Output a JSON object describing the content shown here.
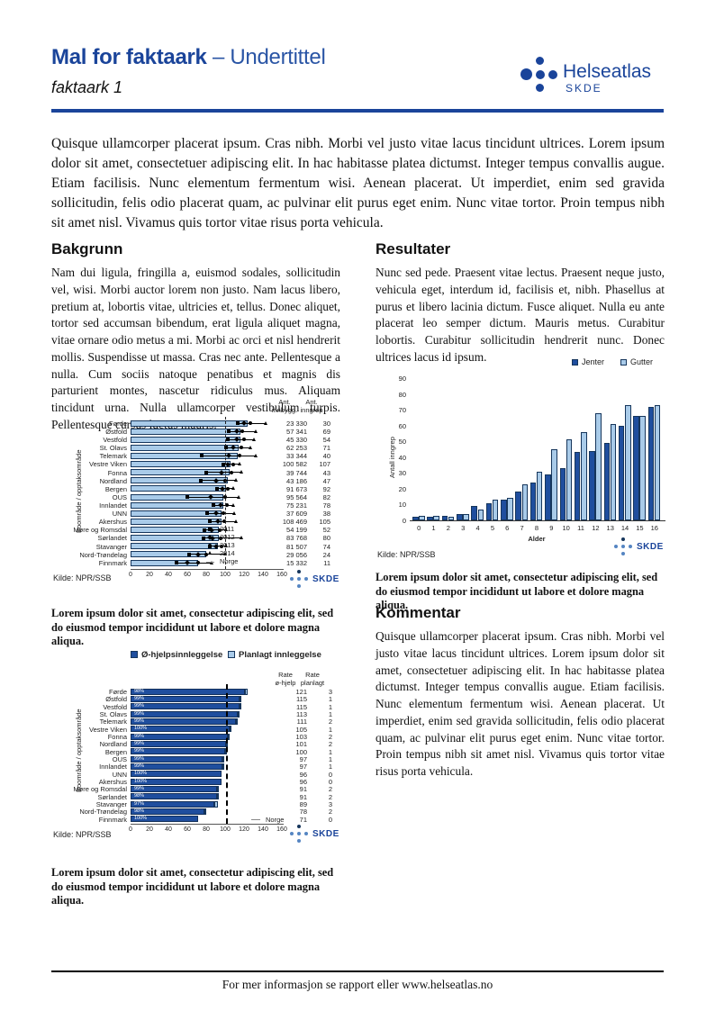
{
  "header": {
    "title": "Mal for faktaark",
    "title_suffix": " – Undertittel",
    "subtitle": "faktaark 1",
    "logo_name": "Helseatlas",
    "logo_org": "SKDE"
  },
  "intro": "Quisque ullamcorper placerat ipsum. Cras nibh. Morbi vel justo vitae lacus tincidunt ultrices. Lorem ipsum dolor sit amet, consectetuer adipiscing elit. In hac habitasse platea dictumst. Integer tempus convallis augue. Etiam facilisis. Nunc elementum fermentum wisi. Aenean placerat. Ut imperdiet, enim sed gravida sollicitudin, felis odio placerat quam, ac pulvinar elit purus eget enim. Nunc vitae tortor. Proin tempus nibh sit amet nisl. Vivamus quis tortor vitae risus porta vehicula.",
  "sections": {
    "bakgrunn": {
      "heading": "Bakgrunn",
      "body": "Nam dui ligula, fringilla a, euismod sodales, sollicitudin vel, wisi. Morbi auctor lorem non justo. Nam lacus libero, pretium at, lobortis vitae, ultricies et, tellus. Donec aliquet, tortor sed accumsan bibendum, erat ligula aliquet magna, vitae ornare odio metus a mi. Morbi ac orci et nisl hendrerit mollis. Suspendisse ut massa. Cras nec ante. Pellentesque a nulla. Cum sociis natoque penatibus et magnis dis parturient montes, nascetur ridiculus mus. Aliquam tincidunt urna. Nulla ullamcorper vestibulum turpis. Pellentesque cursus luctus mauris."
    },
    "resultater": {
      "heading": "Resultater",
      "body": "Nunc sed pede. Praesent vitae lectus. Praesent neque justo, vehicula eget, interdum id, facilisis et, nibh. Phasellus at purus et libero lacinia dictum. Fusce aliquet. Nulla eu ante placerat leo semper dictum. Mauris metus. Curabitur lobortis. Curabitur sollicitudin hendrerit nunc. Donec ultrices lacus id ipsum."
    },
    "kommentar": {
      "heading": "Kommentar",
      "body": "Quisque ullamcorper placerat ipsum. Cras nibh. Morbi vel justo vitae lacus tincidunt ultrices. Lorem ipsum dolor sit amet, consectetuer adipiscing elit. In hac habitasse platea dictumst. Integer tempus convallis augue. Etiam facilisis. Nunc elementum fermentum wisi. Aenean placerat. Ut imperdiet, enim sed gravida sollicitudin, felis odio placerat quam, ac pulvinar elit purus eget enim. Nunc vitae tortor. Proin tempus nibh sit amet nisl. Vivamus quis tortor vitae risus porta vehicula."
    }
  },
  "captions": {
    "chart1": "Lorem ipsum dolor sit amet, consectetur adipiscing elit, sed do eiusmod tempor incididunt ut labore et dolore magna aliqua.",
    "chart2": "Lorem ipsum dolor sit amet, consectetur adipiscing elit, sed do eiusmod tempor incididunt ut labore et dolore magna aliqua.",
    "chart3": "Lorem ipsum dolor sit amet, consectetur adipiscing elit, sed do eiusmod tempor incididunt ut labore et dolore magna aliqua."
  },
  "footer": "For mer informasjon se rapport eller www.helseatlas.no",
  "colors": {
    "brand": "#1a449a",
    "dark_bar": "#1f4e9e",
    "light_bar": "#a9cbe9",
    "bar_border": "#16365c"
  },
  "chart_data": [
    {
      "type": "bar",
      "orientation": "horizontal",
      "ylabel": "Boområde / opptaksområde",
      "col_headers": [
        "Ant.\ninnbygg.",
        "Ant.\ninngrep"
      ],
      "xticks": [
        0,
        20,
        40,
        60,
        80,
        100,
        120,
        140,
        160
      ],
      "xlim": [
        0,
        160
      ],
      "norge_line": 100,
      "legend": [
        {
          "label": "2011",
          "marker": "square"
        },
        {
          "label": "2012",
          "marker": "diamond"
        },
        {
          "label": "2013",
          "marker": "circle"
        },
        {
          "label": "2014",
          "marker": "triangle"
        },
        {
          "label": "Norge",
          "marker": "dash"
        }
      ],
      "kilde": "Kilde: NPR/SSB",
      "rows": [
        {
          "name": "Førde",
          "bar": 124,
          "points": [
            113,
            120,
            127,
            143
          ],
          "innbygg": "23 330",
          "inngrep": "30"
        },
        {
          "name": "Østfold",
          "bar": 116,
          "points": [
            104,
            112,
            118,
            133
          ],
          "innbygg": "57 341",
          "inngrep": "69"
        },
        {
          "name": "Vestfold",
          "bar": 116,
          "points": [
            103,
            112,
            120,
            131
          ],
          "innbygg": "45 330",
          "inngrep": "54"
        },
        {
          "name": "St. Olavs",
          "bar": 114,
          "points": [
            101,
            109,
            117,
            127
          ],
          "innbygg": "62 253",
          "inngrep": "71"
        },
        {
          "name": "Telemark",
          "bar": 113,
          "points": [
            75,
            104,
            115,
            133
          ],
          "innbygg": "33 344",
          "inngrep": "40"
        },
        {
          "name": "Vestre Viken",
          "bar": 106,
          "points": [
            98,
            103,
            109,
            116
          ],
          "innbygg": "100 582",
          "inngrep": "107"
        },
        {
          "name": "Fonna",
          "bar": 105,
          "points": [
            80,
            96,
            107,
            118
          ],
          "innbygg": "39 744",
          "inngrep": "43"
        },
        {
          "name": "Nordland",
          "bar": 103,
          "points": [
            74,
            90,
            100,
            112
          ],
          "innbygg": "43 186",
          "inngrep": "47"
        },
        {
          "name": "Bergen",
          "bar": 101,
          "points": [
            91,
            97,
            103,
            109
          ],
          "innbygg": "91 673",
          "inngrep": "92"
        },
        {
          "name": "OUS",
          "bar": 98,
          "points": [
            60,
            85,
            100,
            115
          ],
          "innbygg": "95 564",
          "inngrep": "82"
        },
        {
          "name": "Innlandet",
          "bar": 98,
          "points": [
            88,
            95,
            102,
            109
          ],
          "innbygg": "75 231",
          "inngrep": "78"
        },
        {
          "name": "UNN",
          "bar": 96,
          "points": [
            81,
            90,
            98,
            110
          ],
          "innbygg": "37 609",
          "inngrep": "38"
        },
        {
          "name": "Akershus",
          "bar": 96,
          "points": [
            84,
            92,
            99,
            112
          ],
          "innbygg": "108 469",
          "inngrep": "105"
        },
        {
          "name": "Møre og Romsdal",
          "bar": 93,
          "points": [
            78,
            86,
            94,
            101
          ],
          "innbygg": "54 199",
          "inngrep": "52"
        },
        {
          "name": "Sørlandet",
          "bar": 93,
          "points": [
            77,
            87,
            95,
            118
          ],
          "innbygg": "83 768",
          "inngrep": "80"
        },
        {
          "name": "Stavanger",
          "bar": 92,
          "points": [
            84,
            90,
            96,
            101
          ],
          "innbygg": "81 507",
          "inngrep": "74"
        },
        {
          "name": "Nord-Trøndelag",
          "bar": 80,
          "points": [
            62,
            71,
            80,
            100
          ],
          "innbygg": "29 056",
          "inngrep": "24"
        },
        {
          "name": "Finnmark",
          "bar": 71,
          "points": [
            49,
            60,
            71,
            86
          ],
          "innbygg": "15 332",
          "inngrep": "11"
        }
      ]
    },
    {
      "type": "bar",
      "orientation": "vertical-grouped",
      "title": "",
      "xlabel": "Alder",
      "ylabel": "Antall inngrep",
      "ylim": [
        0,
        90
      ],
      "yticks": [
        0,
        10,
        20,
        30,
        40,
        50,
        60,
        70,
        80,
        90
      ],
      "categories": [
        "0",
        "1",
        "2",
        "3",
        "4",
        "5",
        "6",
        "7",
        "8",
        "9",
        "10",
        "11",
        "12",
        "13",
        "14",
        "15",
        "16"
      ],
      "series": [
        {
          "name": "Jenter",
          "color": "#1f4e9e",
          "values": [
            2,
            2,
            3,
            4,
            9,
            11,
            13,
            18,
            24,
            29,
            33,
            43,
            44,
            49,
            60,
            66,
            72
          ]
        },
        {
          "name": "Gutter",
          "color": "#a9cbe9",
          "values": [
            3,
            3,
            2,
            4,
            7,
            13,
            14,
            23,
            31,
            45,
            51,
            56,
            68,
            61,
            73,
            66,
            73
          ]
        }
      ],
      "legend_position": "top-right",
      "kilde": "Kilde: NPR/SSB"
    },
    {
      "type": "bar",
      "orientation": "horizontal-stacked",
      "ylabel": "Boområde / opptaksområde",
      "legend": [
        {
          "label": "Ø-hjelpsinnleggelse",
          "color": "#1f4e9e"
        },
        {
          "label": "Planlagt innleggelse",
          "color": "#a9cbe9"
        }
      ],
      "col_headers": [
        "Rate\nø-hjelp",
        "Rate\nplanlagt"
      ],
      "xticks": [
        0,
        20,
        40,
        60,
        80,
        100,
        120,
        140,
        160
      ],
      "xlim": [
        0,
        160
      ],
      "norge_line": 101,
      "norge_label": "Norge",
      "kilde": "Kilde: NPR/SSB",
      "rows": [
        {
          "name": "Førde",
          "ohjelp": 121,
          "planlagt": 3,
          "pct": "98%"
        },
        {
          "name": "Østfold",
          "ohjelp": 115,
          "planlagt": 1,
          "pct": "99%"
        },
        {
          "name": "Vestfold",
          "ohjelp": 115,
          "planlagt": 1,
          "pct": "99%"
        },
        {
          "name": "St. Olavs",
          "ohjelp": 113,
          "planlagt": 1,
          "pct": "99%"
        },
        {
          "name": "Telemark",
          "ohjelp": 111,
          "planlagt": 2,
          "pct": "99%"
        },
        {
          "name": "Vestre Viken",
          "ohjelp": 105,
          "planlagt": 1,
          "pct": "100%"
        },
        {
          "name": "Fonna",
          "ohjelp": 103,
          "planlagt": 2,
          "pct": "99%"
        },
        {
          "name": "Nordland",
          "ohjelp": 101,
          "planlagt": 2,
          "pct": "99%"
        },
        {
          "name": "Bergen",
          "ohjelp": 100,
          "planlagt": 1,
          "pct": "99%"
        },
        {
          "name": "OUS",
          "ohjelp": 97,
          "planlagt": 1,
          "pct": "99%"
        },
        {
          "name": "Innlandet",
          "ohjelp": 97,
          "planlagt": 1,
          "pct": "99%"
        },
        {
          "name": "UNN",
          "ohjelp": 96,
          "planlagt": 0,
          "pct": "100%"
        },
        {
          "name": "Akershus",
          "ohjelp": 96,
          "planlagt": 0,
          "pct": "100%"
        },
        {
          "name": "Møre og Romsdal",
          "ohjelp": 91,
          "planlagt": 2,
          "pct": "99%"
        },
        {
          "name": "Sørlandet",
          "ohjelp": 91,
          "planlagt": 2,
          "pct": "98%"
        },
        {
          "name": "Stavanger",
          "ohjelp": 89,
          "planlagt": 3,
          "pct": "97%"
        },
        {
          "name": "Nord-Trøndelag",
          "ohjelp": 78,
          "planlagt": 2,
          "pct": "98%"
        },
        {
          "name": "Finnmark",
          "ohjelp": 71,
          "planlagt": 0,
          "pct": "100%"
        }
      ]
    }
  ]
}
